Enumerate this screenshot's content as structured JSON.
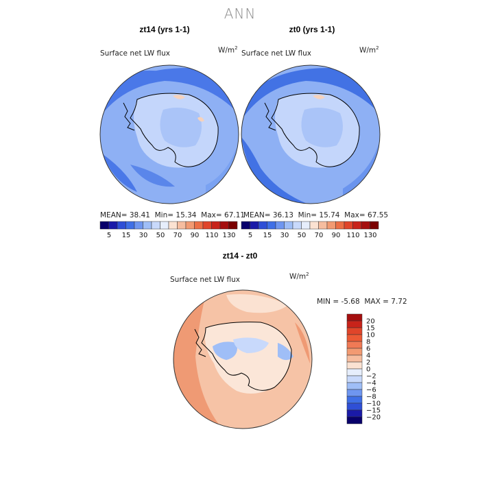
{
  "title": "ANN",
  "panels": [
    {
      "title": "zt14 (yrs 1-1)",
      "variable": "Surface net LW flux",
      "units_base": "W/m",
      "units_exp": "2",
      "mean_label": "MEAN=",
      "mean": "38.41",
      "min_label": "Min=",
      "min": "15.34",
      "max_label": "Max=",
      "max": "67.11"
    },
    {
      "title": "zt0 (yrs 1-1)",
      "variable": "Surface net LW flux",
      "units_base": "W/m",
      "units_exp": "2",
      "mean_label": "MEAN=",
      "mean": "36.13",
      "min_label": "Min=",
      "min": "15.74",
      "max_label": "Max=",
      "max": "67.55"
    }
  ],
  "diff": {
    "title": "zt14 - zt0",
    "variable": "Surface net LW flux",
    "units_base": "W/m",
    "units_exp": "2",
    "min_label": "MIN =",
    "min": "-5.68",
    "max_label": "MAX =",
    "max": "7.72"
  },
  "colorbar_top": {
    "labels": [
      "5",
      "15",
      "30",
      "50",
      "70",
      "90",
      "110",
      "130"
    ],
    "colors": [
      "#08006b",
      "#1a1aa8",
      "#2f4fd6",
      "#3f6fe6",
      "#6f96f0",
      "#9fbef7",
      "#c8d9fb",
      "#e6eefc",
      "#fbe2d2",
      "#f6bd9f",
      "#f29a72",
      "#ec6f45",
      "#e0452a",
      "#c8231a",
      "#a50f0f",
      "#7a0000"
    ]
  },
  "colorbar_diff": {
    "labels": [
      "20",
      "15",
      "10",
      "8",
      "6",
      "4",
      "2",
      "0",
      "−2",
      "−4",
      "−6",
      "−8",
      "−10",
      "−15",
      "−20"
    ],
    "colors": [
      "#a50f0f",
      "#c8231a",
      "#e0452a",
      "#ec5a35",
      "#f07a55",
      "#f29a72",
      "#f6bd9f",
      "#fbe2d2",
      "#e6eefc",
      "#c8d9fb",
      "#9fbef7",
      "#6f96f0",
      "#3f6fe6",
      "#2f4fd6",
      "#1a1aa8",
      "#08006b"
    ]
  }
}
